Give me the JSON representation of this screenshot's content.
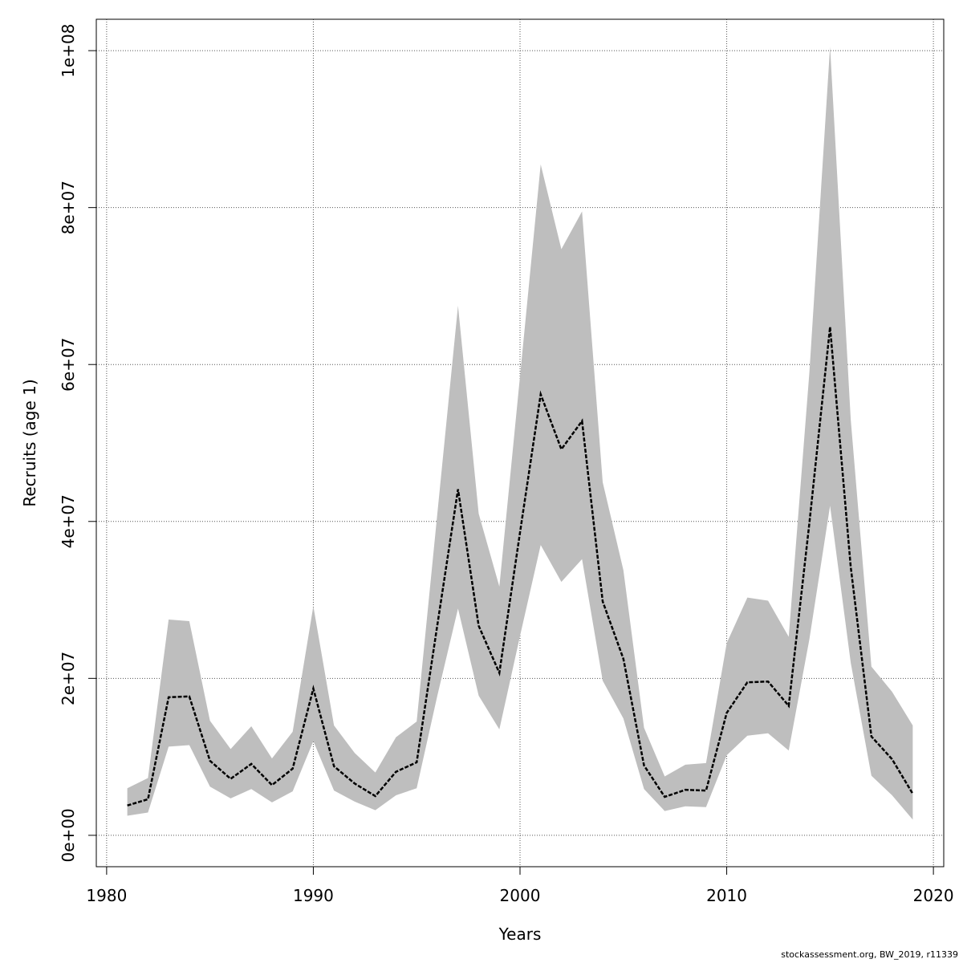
{
  "chart_data": {
    "type": "line",
    "xlabel": "Years",
    "ylabel": "Recruits (age 1)",
    "xlim": [
      1979.5,
      2020.5
    ],
    "ylim": [
      -4000000,
      104000000
    ],
    "x_ticks": [
      1980,
      1990,
      2000,
      2010,
      2020
    ],
    "x_tick_labels": [
      "1980",
      "1990",
      "2000",
      "2010",
      "2020"
    ],
    "y_ticks": [
      0,
      20000000,
      40000000,
      60000000,
      80000000,
      100000000
    ],
    "y_tick_labels": [
      "0e+00",
      "2e+07",
      "4e+07",
      "6e+07",
      "8e+07",
      "1e+08"
    ],
    "grid": true,
    "band_color": "#bebebe",
    "line_color": "#000000",
    "x": [
      1981,
      1982,
      1983,
      1984,
      1985,
      1986,
      1987,
      1988,
      1989,
      1990,
      1991,
      1992,
      1993,
      1994,
      1995,
      1996,
      1997,
      1998,
      1999,
      2000,
      2001,
      2002,
      2003,
      2004,
      2005,
      2006,
      2007,
      2008,
      2009,
      2010,
      2011,
      2012,
      2013,
      2014,
      2015,
      2016,
      2017,
      2018,
      2019
    ],
    "series": [
      {
        "values": [
          3800000,
          4600000,
          17600000,
          17700000,
          9500000,
          7200000,
          9100000,
          6400000,
          8500000,
          18700000,
          8800000,
          6600000,
          5000000,
          8100000,
          9300000,
          26800000,
          44100000,
          26700000,
          20700000,
          38600000,
          56200000,
          49200000,
          52800000,
          29800000,
          22500000,
          8900000,
          4900000,
          5800000,
          5700000,
          15600000,
          19500000,
          19600000,
          16500000,
          39800000,
          64800000,
          34200000,
          12600000,
          9700000,
          5300000
        ]
      }
    ],
    "lower": [
      2500000,
      2900000,
      11300000,
      11500000,
      6200000,
      4700000,
      5900000,
      4200000,
      5600000,
      12000000,
      5700000,
      4300000,
      3200000,
      5100000,
      6000000,
      17800000,
      28900000,
      17800000,
      13500000,
      25400000,
      37000000,
      32300000,
      35200000,
      19700000,
      14900000,
      5900000,
      3100000,
      3700000,
      3600000,
      10200000,
      12700000,
      13000000,
      10800000,
      25000000,
      42000000,
      22000000,
      7600000,
      5100000,
      2000000
    ],
    "upper": [
      6000000,
      7300000,
      27500000,
      27300000,
      14600000,
      11000000,
      13900000,
      9800000,
      13200000,
      29200000,
      14000000,
      10500000,
      8000000,
      12500000,
      14500000,
      41000000,
      67500000,
      41000000,
      31700000,
      58500000,
      85500000,
      74700000,
      79500000,
      45000000,
      33800000,
      13700000,
      7500000,
      9000000,
      9200000,
      24500000,
      30300000,
      29900000,
      25300000,
      59000000,
      100500000,
      53000000,
      21500000,
      18300000,
      14000000
    ]
  },
  "footer": {
    "credit": "stockassessment.org, BW_2019, r11339"
  }
}
